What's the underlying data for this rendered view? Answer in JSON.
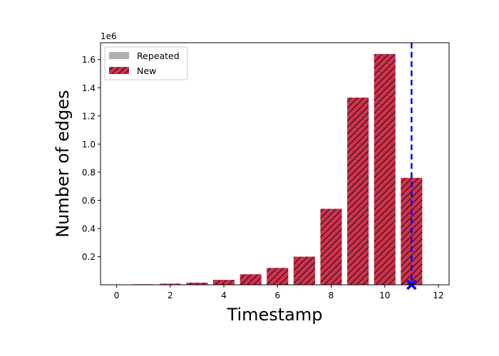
{
  "chart_data": {
    "type": "bar",
    "x": [
      1,
      2,
      3,
      4,
      5,
      6,
      7,
      8,
      9,
      10,
      11
    ],
    "series": [
      {
        "name": "Repeated",
        "values": [
          0,
          0,
          0,
          0,
          0,
          0,
          0,
          0,
          0,
          0,
          0
        ],
        "color": "#b0b0b0",
        "hatch": "none"
      },
      {
        "name": "New",
        "values": [
          4000,
          8000,
          15000,
          35000,
          75000,
          120000,
          200000,
          540000,
          1330000,
          1640000,
          760000
        ],
        "color": "#d1314b",
        "hatch": "diagonal"
      }
    ],
    "xlabel": "Timestamp",
    "ylabel": "Number of edges",
    "offset_label": "1e6",
    "xlim": [
      -0.6,
      12.4
    ],
    "ylim": [
      0,
      1720000
    ],
    "xticks": [
      0,
      2,
      4,
      6,
      8,
      10,
      12
    ],
    "xtick_labels": [
      "0",
      "2",
      "4",
      "6",
      "8",
      "10",
      "12"
    ],
    "yticks": [
      200000,
      400000,
      600000,
      800000,
      1000000,
      1200000,
      1400000,
      1600000
    ],
    "ytick_labels": [
      "0.2",
      "0.4",
      "0.6",
      "0.8",
      "1.0",
      "1.2",
      "1.4",
      "1.6"
    ],
    "marker": {
      "x": 11,
      "y": 0,
      "symbol": "x",
      "color": "#0000ff",
      "vline": true
    },
    "legend_placement": "top-left",
    "grid": false
  }
}
